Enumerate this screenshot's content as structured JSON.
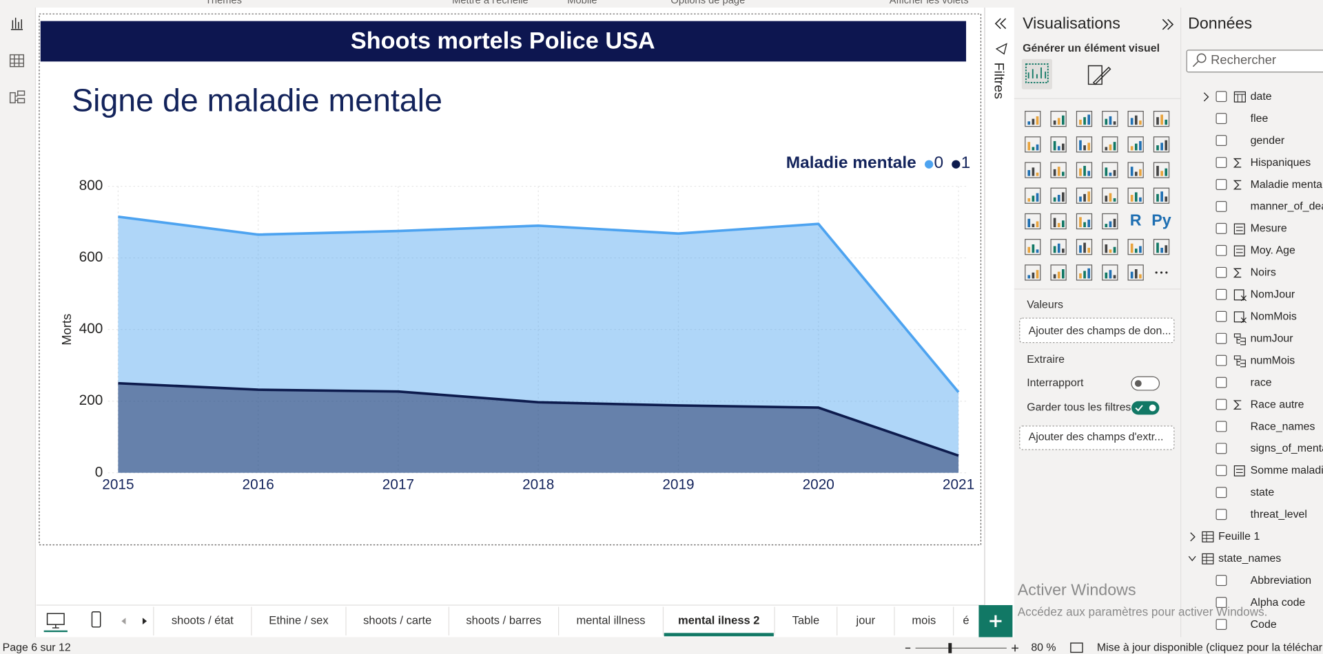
{
  "ribbon": {
    "groups": [
      "Thèmes",
      "Mettre à l'échelle",
      "Mobile",
      "Options de page",
      "Afficher les volets"
    ]
  },
  "report": {
    "banner": "Shoots mortels Police USA"
  },
  "chart_data": {
    "type": "area",
    "title": "Signe de maladie mentale",
    "y_label": "Morts",
    "legend_title": "Maladie mentale",
    "categories": [
      "2015",
      "2016",
      "2017",
      "2018",
      "2019",
      "2020",
      "2021"
    ],
    "series": [
      {
        "name": "0",
        "color": "#4da3f0",
        "values": [
          715,
          665,
          675,
          690,
          668,
          695,
          225
        ]
      },
      {
        "name": "1",
        "color": "#0d1b4d",
        "values": [
          250,
          232,
          227,
          197,
          188,
          182,
          48
        ]
      }
    ],
    "ylim": [
      0,
      800
    ],
    "yticks": [
      0,
      200,
      400,
      600,
      800
    ],
    "grid": true
  },
  "filters": {
    "label": "Filtres"
  },
  "visualizations": {
    "title": "Visualisations",
    "subtitle": "Générer un élément visuel",
    "script_visuals": [
      "R",
      "Py"
    ],
    "values_label": "Valeurs",
    "values_placeholder": "Ajouter des champs de don...",
    "drill_label": "Extraire",
    "cross_report": "Interrapport",
    "keep_filters": "Garder tous les filtres",
    "drill_placeholder": "Ajouter des champs d'extr..."
  },
  "data_pane": {
    "title": "Données",
    "search": "Rechercher",
    "fields": [
      {
        "name": "date",
        "icon": "calendar"
      },
      {
        "name": "flee",
        "icon": "none"
      },
      {
        "name": "gender",
        "icon": "none"
      },
      {
        "name": "Hispaniques",
        "icon": "sum"
      },
      {
        "name": "Maladie menta",
        "icon": "sum"
      },
      {
        "name": "manner_of_dea",
        "icon": "none"
      },
      {
        "name": "Mesure",
        "icon": "measure"
      },
      {
        "name": "Moy. Age",
        "icon": "measure"
      },
      {
        "name": "Noirs",
        "icon": "sum"
      },
      {
        "name": "NomJour",
        "icon": "calc-column"
      },
      {
        "name": "NomMois",
        "icon": "calc-column"
      },
      {
        "name": "numJour",
        "icon": "hierarchy"
      },
      {
        "name": "numMois",
        "icon": "hierarchy"
      },
      {
        "name": "race",
        "icon": "none"
      },
      {
        "name": "Race autre",
        "icon": "sum"
      },
      {
        "name": "Race_names",
        "icon": "none"
      },
      {
        "name": "signs_of_menta",
        "icon": "none"
      },
      {
        "name": "Somme maladi",
        "icon": "measure"
      },
      {
        "name": "state",
        "icon": "none"
      },
      {
        "name": "threat_level",
        "icon": "none"
      },
      {
        "name": "Feuille 1",
        "icon": "table-collapsed"
      },
      {
        "name": "state_names",
        "icon": "table-expanded"
      },
      {
        "name": "Abbreviation",
        "icon": "none"
      },
      {
        "name": "Alpha code",
        "icon": "none"
      },
      {
        "name": "Code",
        "icon": "none"
      }
    ]
  },
  "watermark": {
    "title": "Activer Windows",
    "text": "Accédez aux paramètres pour activer Windows."
  },
  "tabs": {
    "items": [
      "shoots / état",
      "Ethine / sex",
      "shoots / carte",
      "shoots / barres",
      "mental illness",
      "mental ilness 2",
      "Table",
      "jour",
      "mois",
      "é"
    ],
    "active": 5
  },
  "status": {
    "page": "Page 6 sur 12",
    "zoom": "80 %",
    "update": "Mise à jour disponible (cliquez pour la téléchar"
  }
}
